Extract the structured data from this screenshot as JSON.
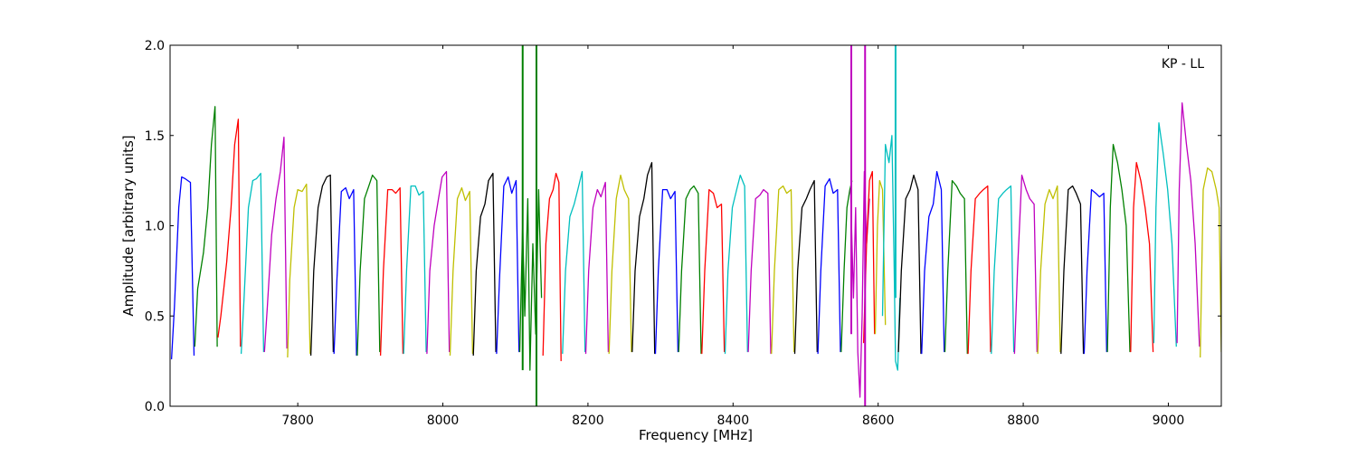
{
  "chart_data": {
    "type": "line",
    "title": "",
    "annotation": "KP - LL",
    "xlabel": "Frequency [MHz]",
    "ylabel": "Amplitude [arbitrary units]",
    "xlim": [
      7624,
      9073
    ],
    "ylim": [
      0.0,
      2.0
    ],
    "xticks": [
      7800,
      8000,
      8200,
      8400,
      8600,
      8800,
      9000
    ],
    "xtick_labels": [
      "7800",
      "8000",
      "8200",
      "8400",
      "8600",
      "8800",
      "9000"
    ],
    "yticks": [
      0.0,
      0.5,
      1.0,
      1.5,
      2.0
    ],
    "ytick_labels": [
      "0.0",
      "0.5",
      "1.0",
      "1.5",
      "2.0"
    ],
    "grid": false,
    "legend": "none",
    "color_cycle": [
      "#0000ff",
      "#008000",
      "#ff0000",
      "#00bfbf",
      "#bf00bf",
      "#bfbf00",
      "#000000"
    ],
    "channel_width_mhz": 32,
    "channel_start_mhz": 7626,
    "series": [
      {
        "color": "#0000ff",
        "x": [
          7626,
          7630,
          7636,
          7640,
          7645,
          7652,
          7657
        ],
        "y": [
          0.26,
          0.55,
          1.1,
          1.27,
          1.26,
          1.24,
          0.28
        ]
      },
      {
        "color": "#008000",
        "x": [
          7658,
          7662,
          7670,
          7676,
          7681,
          7686,
          7689
        ],
        "y": [
          0.33,
          0.65,
          0.85,
          1.1,
          1.45,
          1.66,
          0.33
        ]
      },
      {
        "color": "#ff0000",
        "x": [
          7690,
          7694,
          7702,
          7708,
          7713,
          7718,
          7721
        ],
        "y": [
          0.38,
          0.5,
          0.8,
          1.1,
          1.45,
          1.59,
          0.33
        ]
      },
      {
        "color": "#00bfbf",
        "x": [
          7722,
          7726,
          7732,
          7738,
          7743,
          7749,
          7753
        ],
        "y": [
          0.29,
          0.6,
          1.1,
          1.25,
          1.26,
          1.29,
          0.3
        ]
      },
      {
        "color": "#bf00bf",
        "x": [
          7754,
          7758,
          7764,
          7770,
          7776,
          7781,
          7785
        ],
        "y": [
          0.3,
          0.55,
          0.95,
          1.15,
          1.3,
          1.49,
          0.32
        ]
      },
      {
        "color": "#bfbf00",
        "x": [
          7786,
          7789,
          7795,
          7800,
          7806,
          7812,
          7817
        ],
        "y": [
          0.27,
          0.7,
          1.1,
          1.2,
          1.19,
          1.23,
          0.29
        ]
      },
      {
        "color": "#000000",
        "x": [
          7818,
          7822,
          7828,
          7834,
          7840,
          7845,
          7849
        ],
        "y": [
          0.28,
          0.75,
          1.1,
          1.22,
          1.27,
          1.28,
          0.3
        ]
      },
      {
        "color": "#0000ff",
        "x": [
          7850,
          7854,
          7860,
          7866,
          7871,
          7877,
          7881
        ],
        "y": [
          0.29,
          0.7,
          1.19,
          1.21,
          1.15,
          1.2,
          0.28
        ]
      },
      {
        "color": "#008000",
        "x": [
          7882,
          7886,
          7892,
          7898,
          7903,
          7909,
          7913
        ],
        "y": [
          0.28,
          0.75,
          1.15,
          1.22,
          1.28,
          1.25,
          0.3
        ]
      },
      {
        "color": "#ff0000",
        "x": [
          7914,
          7918,
          7924,
          7930,
          7935,
          7941,
          7945
        ],
        "y": [
          0.28,
          0.75,
          1.2,
          1.2,
          1.18,
          1.21,
          0.29
        ]
      },
      {
        "color": "#00bfbf",
        "x": [
          7946,
          7950,
          7956,
          7962,
          7967,
          7973,
          7977
        ],
        "y": [
          0.29,
          0.75,
          1.22,
          1.22,
          1.17,
          1.19,
          0.3
        ]
      },
      {
        "color": "#bf00bf",
        "x": [
          7978,
          7982,
          7988,
          7994,
          7999,
          8005,
          8009
        ],
        "y": [
          0.29,
          0.75,
          1.0,
          1.15,
          1.27,
          1.3,
          0.3
        ]
      },
      {
        "color": "#bfbf00",
        "x": [
          8010,
          8014,
          8020,
          8026,
          8031,
          8037,
          8041
        ],
        "y": [
          0.28,
          0.75,
          1.15,
          1.21,
          1.14,
          1.19,
          0.29
        ]
      },
      {
        "color": "#000000",
        "x": [
          8042,
          8046,
          8052,
          8058,
          8063,
          8069,
          8073
        ],
        "y": [
          0.28,
          0.75,
          1.05,
          1.12,
          1.25,
          1.29,
          0.3
        ]
      },
      {
        "color": "#0000ff",
        "x": [
          8074,
          8078,
          8084,
          8090,
          8095,
          8101,
          8105
        ],
        "y": [
          0.29,
          0.7,
          1.22,
          1.27,
          1.18,
          1.25,
          0.3
        ]
      },
      {
        "color": "#008000",
        "x": [
          8106,
          8110,
          8113,
          8117,
          8120,
          8124,
          8128,
          8132,
          8136
        ],
        "y": [
          0.3,
          1.0,
          0.5,
          1.15,
          0.2,
          0.9,
          0.4,
          1.2,
          0.6
        ]
      },
      {
        "color": "#ff0000",
        "x": [
          8138,
          8142,
          8147,
          8152,
          8156,
          8160,
          8163
        ],
        "y": [
          0.28,
          0.9,
          1.15,
          1.2,
          1.29,
          1.24,
          0.25
        ]
      },
      {
        "color": "#00bfbf",
        "x": [
          8165,
          8169,
          8175,
          8181,
          8186,
          8192,
          8196
        ],
        "y": [
          0.29,
          0.75,
          1.05,
          1.12,
          1.2,
          1.3,
          0.3
        ]
      },
      {
        "color": "#bf00bf",
        "x": [
          8197,
          8201,
          8207,
          8213,
          8218,
          8224,
          8228
        ],
        "y": [
          0.29,
          0.75,
          1.1,
          1.2,
          1.16,
          1.24,
          0.3
        ]
      },
      {
        "color": "#bfbf00",
        "x": [
          8229,
          8233,
          8239,
          8245,
          8250,
          8256,
          8260
        ],
        "y": [
          0.29,
          0.75,
          1.15,
          1.28,
          1.2,
          1.15,
          0.3
        ]
      },
      {
        "color": "#000000",
        "x": [
          8261,
          8265,
          8271,
          8277,
          8282,
          8288,
          8292
        ],
        "y": [
          0.3,
          0.75,
          1.05,
          1.15,
          1.28,
          1.35,
          0.29
        ]
      },
      {
        "color": "#0000ff",
        "x": [
          8293,
          8297,
          8303,
          8309,
          8314,
          8320,
          8324
        ],
        "y": [
          0.29,
          0.75,
          1.2,
          1.2,
          1.15,
          1.19,
          0.3
        ]
      },
      {
        "color": "#008000",
        "x": [
          8325,
          8329,
          8335,
          8341,
          8346,
          8352,
          8356
        ],
        "y": [
          0.3,
          0.75,
          1.15,
          1.2,
          1.22,
          1.18,
          0.29
        ]
      },
      {
        "color": "#ff0000",
        "x": [
          8357,
          8361,
          8367,
          8373,
          8378,
          8384,
          8388
        ],
        "y": [
          0.29,
          0.75,
          1.2,
          1.18,
          1.1,
          1.12,
          0.3
        ]
      },
      {
        "color": "#00bfbf",
        "x": [
          8389,
          8393,
          8399,
          8405,
          8410,
          8416,
          8420
        ],
        "y": [
          0.29,
          0.75,
          1.1,
          1.2,
          1.28,
          1.22,
          0.3
        ]
      },
      {
        "color": "#bf00bf",
        "x": [
          8421,
          8425,
          8431,
          8437,
          8442,
          8448,
          8452
        ],
        "y": [
          0.3,
          0.75,
          1.15,
          1.17,
          1.2,
          1.18,
          0.29
        ]
      },
      {
        "color": "#bfbf00",
        "x": [
          8453,
          8457,
          8463,
          8469,
          8474,
          8480,
          8484
        ],
        "y": [
          0.29,
          0.75,
          1.2,
          1.22,
          1.18,
          1.2,
          0.3
        ]
      },
      {
        "color": "#000000",
        "x": [
          8485,
          8489,
          8495,
          8501,
          8506,
          8512,
          8516
        ],
        "y": [
          0.29,
          0.75,
          1.1,
          1.15,
          1.2,
          1.25,
          0.3
        ]
      },
      {
        "color": "#0000ff",
        "x": [
          8517,
          8521,
          8527,
          8533,
          8538,
          8544,
          8548
        ],
        "y": [
          0.29,
          0.75,
          1.22,
          1.26,
          1.18,
          1.2,
          0.3
        ]
      },
      {
        "color": "#008000",
        "x": [
          8549,
          8553,
          8557,
          8561,
          8564
        ],
        "y": [
          0.3,
          0.75,
          1.1,
          1.2,
          1.25
        ]
      },
      {
        "color": "#bf00bf",
        "x": [
          8562,
          8566,
          8569,
          8572,
          8575,
          8578,
          8581,
          8584,
          8588
        ],
        "y": [
          1.2,
          0.6,
          1.1,
          0.3,
          0.05,
          0.5,
          1.3,
          0.9,
          1.15
        ]
      },
      {
        "color": "#ff0000",
        "x": [
          8580,
          8584,
          8588,
          8592,
          8595
        ],
        "y": [
          0.35,
          0.9,
          1.25,
          1.3,
          0.4
        ]
      },
      {
        "color": "#bfbf00",
        "x": [
          8596,
          8599,
          8602,
          8606,
          8610
        ],
        "y": [
          0.4,
          1.0,
          1.25,
          1.2,
          0.45
        ]
      },
      {
        "color": "#00bfbf",
        "x": [
          8606,
          8610,
          8615,
          8619,
          8622,
          8624,
          8627,
          8630
        ],
        "y": [
          0.5,
          1.45,
          1.35,
          1.5,
          0.8,
          0.25,
          0.2,
          0.6
        ]
      },
      {
        "color": "#000000",
        "x": [
          8628,
          8632,
          8638,
          8644,
          8649,
          8655,
          8659
        ],
        "y": [
          0.3,
          0.75,
          1.15,
          1.2,
          1.28,
          1.2,
          0.29
        ]
      },
      {
        "color": "#0000ff",
        "x": [
          8660,
          8664,
          8670,
          8676,
          8681,
          8687,
          8691
        ],
        "y": [
          0.29,
          0.75,
          1.05,
          1.12,
          1.3,
          1.2,
          0.3
        ]
      },
      {
        "color": "#008000",
        "x": [
          8692,
          8696,
          8702,
          8708,
          8713,
          8719,
          8723
        ],
        "y": [
          0.3,
          0.75,
          1.25,
          1.22,
          1.18,
          1.15,
          0.29
        ]
      },
      {
        "color": "#ff0000",
        "x": [
          8724,
          8728,
          8734,
          8740,
          8745,
          8751,
          8755
        ],
        "y": [
          0.29,
          0.75,
          1.15,
          1.18,
          1.2,
          1.22,
          0.3
        ]
      },
      {
        "color": "#00bfbf",
        "x": [
          8756,
          8760,
          8766,
          8772,
          8777,
          8783,
          8787
        ],
        "y": [
          0.29,
          0.75,
          1.15,
          1.18,
          1.2,
          1.22,
          0.3
        ]
      },
      {
        "color": "#bf00bf",
        "x": [
          8788,
          8792,
          8798,
          8804,
          8809,
          8815,
          8819
        ],
        "y": [
          0.29,
          0.75,
          1.28,
          1.2,
          1.15,
          1.12,
          0.3
        ]
      },
      {
        "color": "#bfbf00",
        "x": [
          8820,
          8824,
          8830,
          8836,
          8841,
          8847,
          8851
        ],
        "y": [
          0.29,
          0.75,
          1.12,
          1.2,
          1.15,
          1.22,
          0.3
        ]
      },
      {
        "color": "#000000",
        "x": [
          8852,
          8856,
          8862,
          8868,
          8873,
          8879,
          8883
        ],
        "y": [
          0.29,
          0.75,
          1.2,
          1.22,
          1.18,
          1.12,
          0.29
        ]
      },
      {
        "color": "#0000ff",
        "x": [
          8884,
          8888,
          8894,
          8900,
          8905,
          8911,
          8915
        ],
        "y": [
          0.29,
          0.75,
          1.2,
          1.18,
          1.16,
          1.18,
          0.3
        ]
      },
      {
        "color": "#008000",
        "x": [
          8916,
          8920,
          8924,
          8930,
          8936,
          8942,
          8947
        ],
        "y": [
          0.3,
          1.1,
          1.45,
          1.35,
          1.2,
          1.0,
          0.3
        ]
      },
      {
        "color": "#ff0000",
        "x": [
          8948,
          8952,
          8956,
          8962,
          8968,
          8974,
          8979
        ],
        "y": [
          0.3,
          1.1,
          1.35,
          1.25,
          1.1,
          0.9,
          0.3
        ]
      },
      {
        "color": "#00bfbf",
        "x": [
          8980,
          8983,
          8987,
          8993,
          8999,
          9005,
          9011
        ],
        "y": [
          0.35,
          1.1,
          1.57,
          1.4,
          1.2,
          0.9,
          0.33
        ]
      },
      {
        "color": "#bf00bf",
        "x": [
          9012,
          9015,
          9019,
          9025,
          9031,
          9037,
          9043
        ],
        "y": [
          0.35,
          1.2,
          1.68,
          1.45,
          1.25,
          0.9,
          0.33
        ]
      },
      {
        "color": "#bfbf00",
        "x": [
          9044,
          9048,
          9054,
          9060,
          9066,
          9070,
          9073
        ],
        "y": [
          0.27,
          1.2,
          1.32,
          1.3,
          1.2,
          1.1,
          0.3
        ]
      }
    ],
    "spikes": [
      {
        "color": "#008000",
        "x": 8110,
        "y_from": 0.2,
        "y_to": 2.0
      },
      {
        "color": "#008000",
        "x": 8129,
        "y_from": 0.0,
        "y_to": 2.0
      },
      {
        "color": "#bf00bf",
        "x": 8563,
        "y_from": 0.4,
        "y_to": 2.0
      },
      {
        "color": "#bf00bf",
        "x": 8582,
        "y_from": 0.0,
        "y_to": 2.0
      },
      {
        "color": "#00bfbf",
        "x": 8624,
        "y_from": 0.6,
        "y_to": 2.0
      }
    ]
  }
}
